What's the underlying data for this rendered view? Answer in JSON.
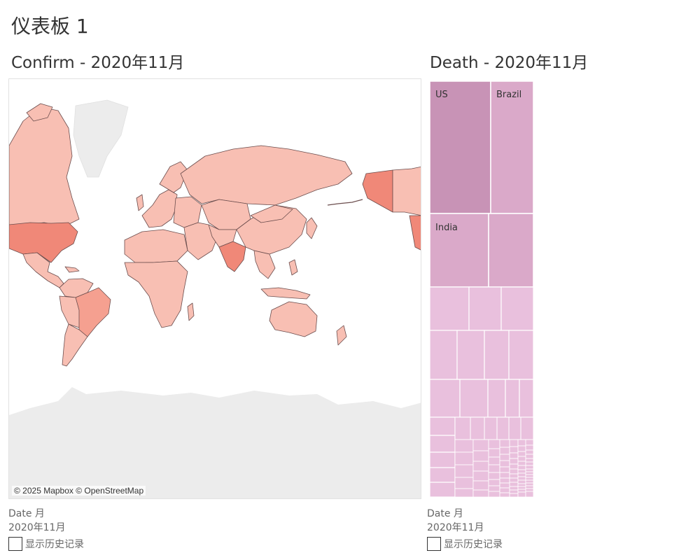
{
  "dashboard": {
    "title": "仪表板 1"
  },
  "confirm_sheet": {
    "title": "Confirm - 2020年11月",
    "map_attribution": "© 2025 Mapbox © OpenStreetMap"
  },
  "death_sheet": {
    "title": "Death - 2020年11月",
    "labels": {
      "us": "US",
      "brazil": "Brazil",
      "india": "India"
    }
  },
  "filters": {
    "left": {
      "title": "Date 月",
      "value": "2020年11月",
      "checkbox_label": "显示历史记录"
    },
    "right": {
      "title": "Date 月",
      "value": "2020年11月",
      "checkbox_label": "显示历史记录"
    }
  },
  "colors": {
    "map_low": "#f8bfb3",
    "map_mid": "#f5a090",
    "map_high": "#f08878",
    "land_nodata": "#ececec",
    "tree_top": "#c893b6",
    "tree_mid": "#daa9c9",
    "tree_low": "#e9c0dd"
  }
}
